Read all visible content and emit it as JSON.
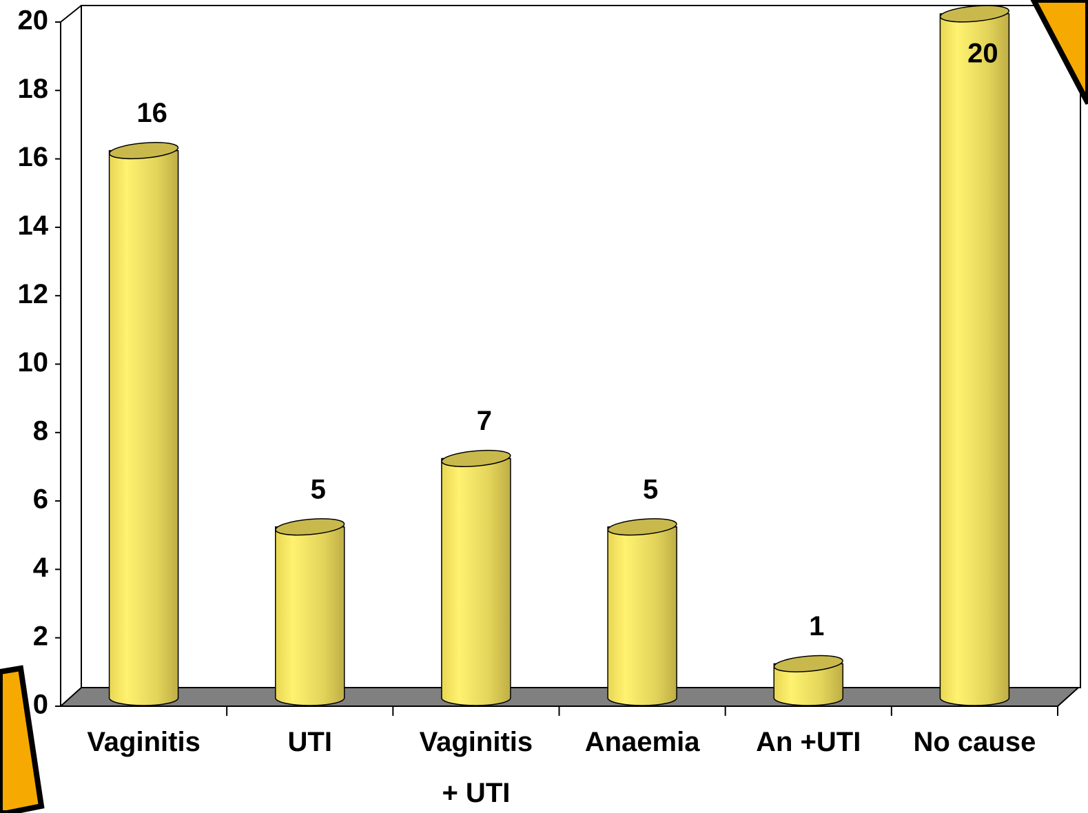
{
  "chart_data": {
    "type": "cylinder-bar",
    "categories": [
      "Vaginitis",
      "UTI",
      "Vaginitis\n+ UTI",
      "Anaemia",
      "An +UTI",
      "No cause"
    ],
    "values": [
      16,
      5,
      7,
      5,
      1,
      20
    ],
    "color": "#f5e35c",
    "ylim": [
      0,
      20
    ],
    "yticks": [
      0,
      2,
      4,
      6,
      8,
      10,
      12,
      14,
      16,
      18,
      20
    ]
  }
}
